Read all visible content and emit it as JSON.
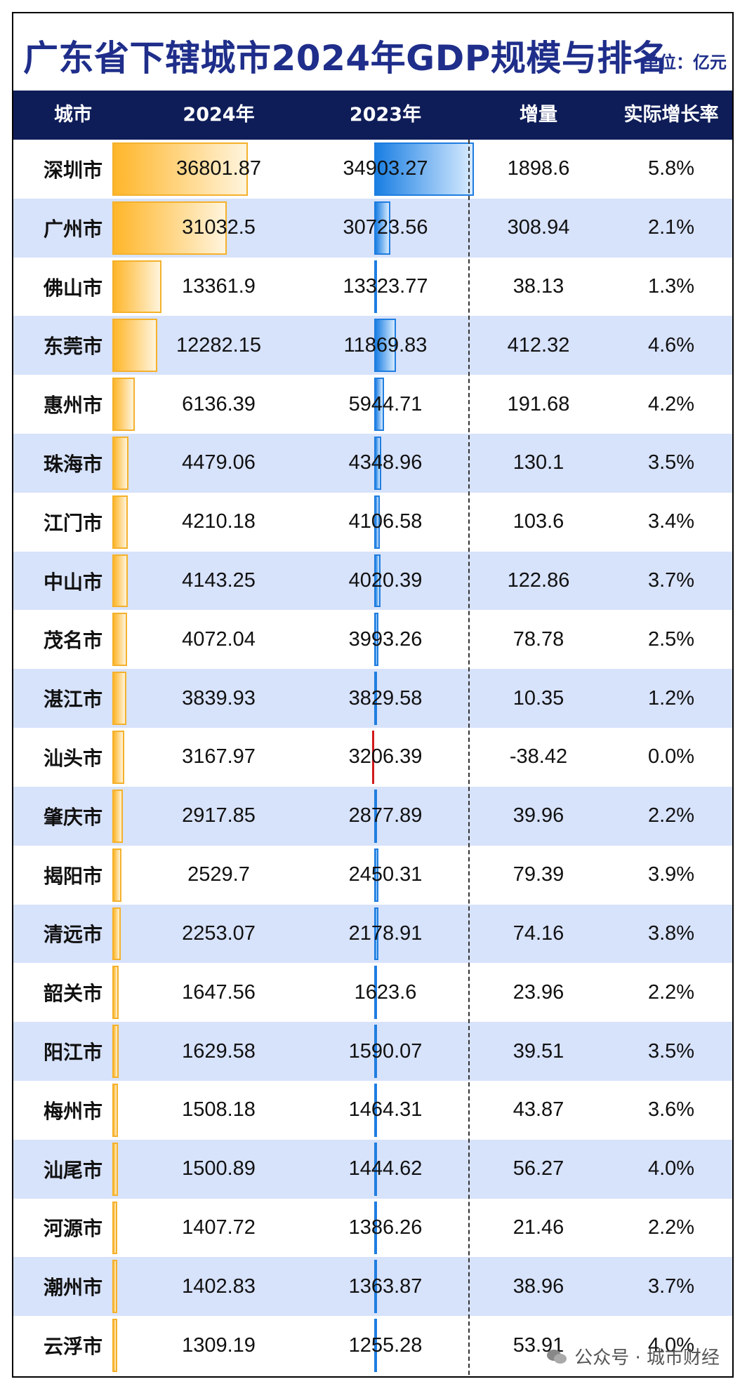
{
  "header": {
    "title": "广东省下辖城市2024年GDP规模与排名",
    "unit": "单位：亿元"
  },
  "columns": [
    "城市",
    "2024年",
    "2023年",
    "增量",
    "实际增长率"
  ],
  "watermark": "公众号 · 城市财经",
  "colors": {
    "title": "#1f2e8a",
    "header_bg": "#0e1d58",
    "alt_row": "#d7e2fb",
    "bar_2024": "#f4b12c",
    "bar_increase": "#1f7de0",
    "bar_negative": "#d11a1a"
  },
  "chart_data": {
    "type": "table",
    "categories": [
      "深圳市",
      "广州市",
      "佛山市",
      "东莞市",
      "惠州市",
      "珠海市",
      "江门市",
      "中山市",
      "茂名市",
      "湛江市",
      "汕头市",
      "肇庆市",
      "揭阳市",
      "清远市",
      "韶关市",
      "阳江市",
      "梅州市",
      "汕尾市",
      "河源市",
      "潮州市",
      "云浮市"
    ],
    "series": [
      {
        "name": "2024年",
        "values": [
          "36801.87",
          "31032.5",
          "13361.9",
          "12282.15",
          "6136.39",
          "4479.06",
          "4210.18",
          "4143.25",
          "4072.04",
          "3839.93",
          "3167.97",
          "2917.85",
          "2529.7",
          "2253.07",
          "1647.56",
          "1629.58",
          "1508.18",
          "1500.89",
          "1407.72",
          "1402.83",
          "1309.19"
        ]
      },
      {
        "name": "2023年",
        "values": [
          "34903.27",
          "30723.56",
          "13323.77",
          "11869.83",
          "5944.71",
          "4348.96",
          "4106.58",
          "4020.39",
          "3993.26",
          "3829.58",
          "3206.39",
          "2877.89",
          "2450.31",
          "2178.91",
          "1623.6",
          "1590.07",
          "1464.31",
          "1444.62",
          "1386.26",
          "1363.87",
          "1255.28"
        ]
      },
      {
        "name": "增量",
        "values": [
          "1898.6",
          "308.94",
          "38.13",
          "412.32",
          "191.68",
          "130.1",
          "103.6",
          "122.86",
          "78.78",
          "10.35",
          "-38.42",
          "39.96",
          "79.39",
          "74.16",
          "23.96",
          "39.51",
          "43.87",
          "56.27",
          "21.46",
          "38.96",
          "53.91"
        ]
      },
      {
        "name": "实际增长率",
        "values": [
          "5.8%",
          "2.1%",
          "1.3%",
          "4.6%",
          "4.2%",
          "3.5%",
          "3.4%",
          "3.7%",
          "2.5%",
          "1.2%",
          "0.0%",
          "2.2%",
          "3.9%",
          "3.8%",
          "2.2%",
          "3.5%",
          "3.6%",
          "4.0%",
          "2.2%",
          "3.7%",
          "4.0%"
        ]
      }
    ]
  }
}
